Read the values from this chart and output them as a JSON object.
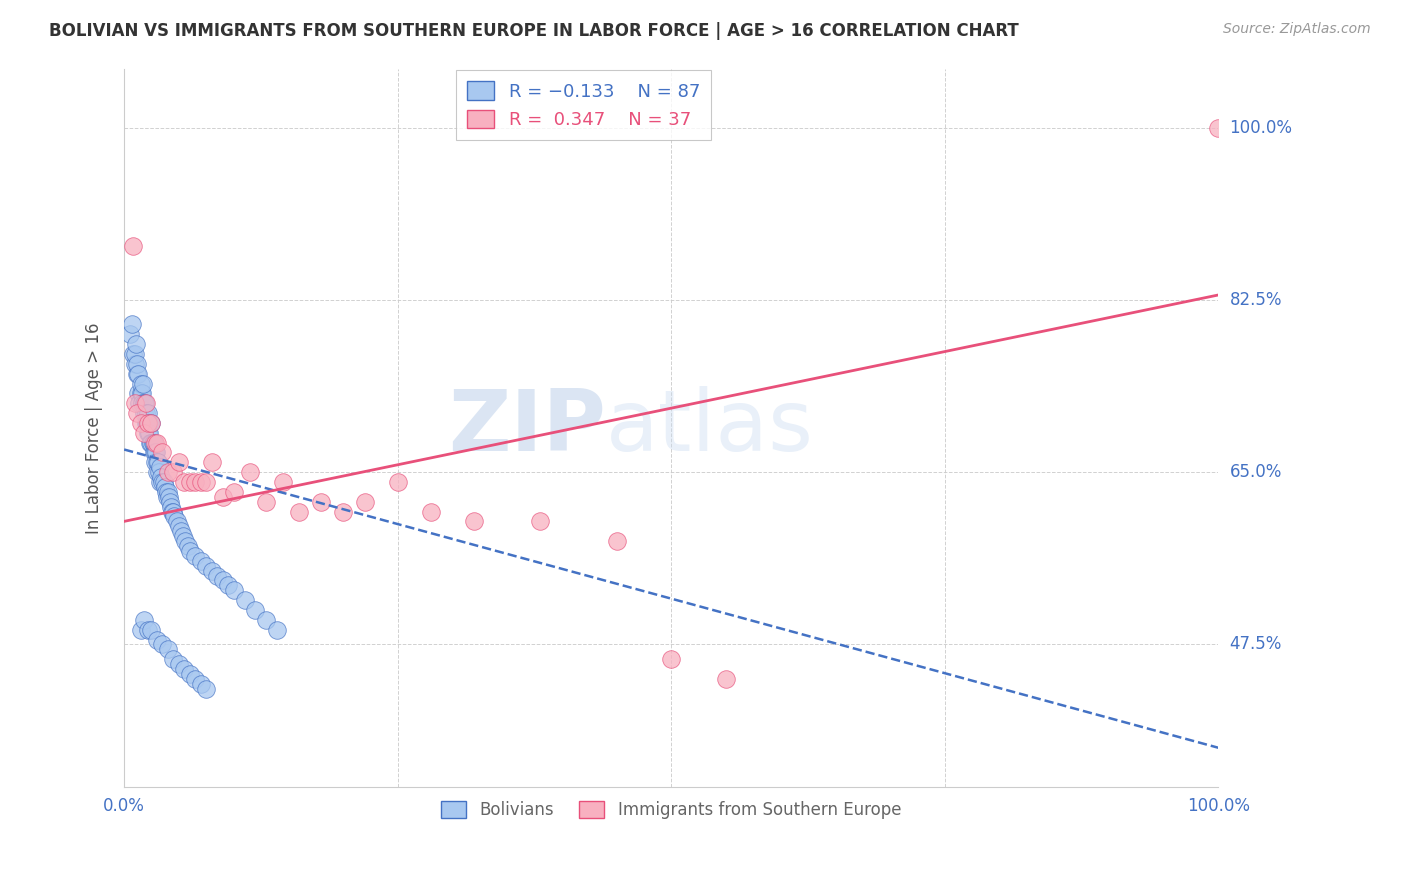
{
  "title": "BOLIVIAN VS IMMIGRANTS FROM SOUTHERN EUROPE IN LABOR FORCE | AGE > 16 CORRELATION CHART",
  "source": "Source: ZipAtlas.com",
  "ylabel": "In Labor Force | Age > 16",
  "xlim": [
    0.0,
    1.0
  ],
  "ylim": [
    0.33,
    1.06
  ],
  "yticks": [
    0.475,
    0.65,
    0.825,
    1.0
  ],
  "ytick_labels": [
    "47.5%",
    "65.0%",
    "82.5%",
    "100.0%"
  ],
  "xticks": [
    0.0,
    0.25,
    0.5,
    0.75,
    1.0
  ],
  "xtick_labels": [
    "0.0%",
    "",
    "",
    "",
    "100.0%"
  ],
  "label1": "Bolivians",
  "label2": "Immigrants from Southern Europe",
  "color1": "#a8c8f0",
  "color2": "#f8b0c0",
  "trend_color1": "#4472c4",
  "trend_color2": "#e8507a",
  "text_color": "#4472c4",
  "background": "#ffffff",
  "blue_scatter_x": [
    0.005,
    0.007,
    0.008,
    0.01,
    0.01,
    0.011,
    0.012,
    0.012,
    0.013,
    0.013,
    0.014,
    0.015,
    0.015,
    0.016,
    0.016,
    0.017,
    0.018,
    0.018,
    0.019,
    0.02,
    0.02,
    0.021,
    0.022,
    0.022,
    0.023,
    0.023,
    0.024,
    0.025,
    0.025,
    0.026,
    0.027,
    0.027,
    0.028,
    0.028,
    0.029,
    0.03,
    0.03,
    0.031,
    0.032,
    0.033,
    0.033,
    0.034,
    0.035,
    0.036,
    0.037,
    0.038,
    0.039,
    0.04,
    0.041,
    0.042,
    0.043,
    0.044,
    0.045,
    0.046,
    0.048,
    0.05,
    0.052,
    0.054,
    0.056,
    0.058,
    0.06,
    0.065,
    0.07,
    0.075,
    0.08,
    0.085,
    0.09,
    0.095,
    0.1,
    0.11,
    0.12,
    0.13,
    0.14,
    0.015,
    0.018,
    0.022,
    0.025,
    0.03,
    0.035,
    0.04,
    0.045,
    0.05,
    0.055,
    0.06,
    0.065,
    0.07,
    0.075
  ],
  "blue_scatter_y": [
    0.79,
    0.8,
    0.77,
    0.76,
    0.77,
    0.78,
    0.75,
    0.76,
    0.75,
    0.73,
    0.72,
    0.73,
    0.74,
    0.73,
    0.72,
    0.74,
    0.72,
    0.71,
    0.72,
    0.7,
    0.71,
    0.7,
    0.69,
    0.71,
    0.7,
    0.69,
    0.68,
    0.68,
    0.7,
    0.68,
    0.67,
    0.68,
    0.67,
    0.66,
    0.67,
    0.66,
    0.65,
    0.66,
    0.65,
    0.64,
    0.655,
    0.645,
    0.64,
    0.64,
    0.635,
    0.63,
    0.625,
    0.63,
    0.625,
    0.62,
    0.615,
    0.61,
    0.61,
    0.605,
    0.6,
    0.595,
    0.59,
    0.585,
    0.58,
    0.575,
    0.57,
    0.565,
    0.56,
    0.555,
    0.55,
    0.545,
    0.54,
    0.535,
    0.53,
    0.52,
    0.51,
    0.5,
    0.49,
    0.49,
    0.5,
    0.49,
    0.49,
    0.48,
    0.475,
    0.47,
    0.46,
    0.455,
    0.45,
    0.445,
    0.44,
    0.435,
    0.43
  ],
  "pink_scatter_x": [
    0.008,
    0.01,
    0.012,
    0.015,
    0.018,
    0.02,
    0.022,
    0.025,
    0.028,
    0.03,
    0.035,
    0.04,
    0.045,
    0.05,
    0.055,
    0.06,
    0.065,
    0.07,
    0.075,
    0.08,
    0.09,
    0.1,
    0.115,
    0.13,
    0.145,
    0.16,
    0.18,
    0.2,
    0.22,
    0.25,
    0.28,
    0.32,
    0.38,
    0.45,
    0.5,
    0.55,
    1.0
  ],
  "pink_scatter_y": [
    0.88,
    0.72,
    0.71,
    0.7,
    0.69,
    0.72,
    0.7,
    0.7,
    0.68,
    0.68,
    0.67,
    0.65,
    0.65,
    0.66,
    0.64,
    0.64,
    0.64,
    0.64,
    0.64,
    0.66,
    0.625,
    0.63,
    0.65,
    0.62,
    0.64,
    0.61,
    0.62,
    0.61,
    0.62,
    0.64,
    0.61,
    0.6,
    0.6,
    0.58,
    0.46,
    0.44,
    1.0
  ],
  "trend_blue_x0": 0.0,
  "trend_blue_y0": 0.673,
  "trend_blue_x1": 1.0,
  "trend_blue_y1": 0.37,
  "trend_pink_x0": 0.0,
  "trend_pink_y0": 0.6,
  "trend_pink_x1": 1.0,
  "trend_pink_y1": 0.83
}
